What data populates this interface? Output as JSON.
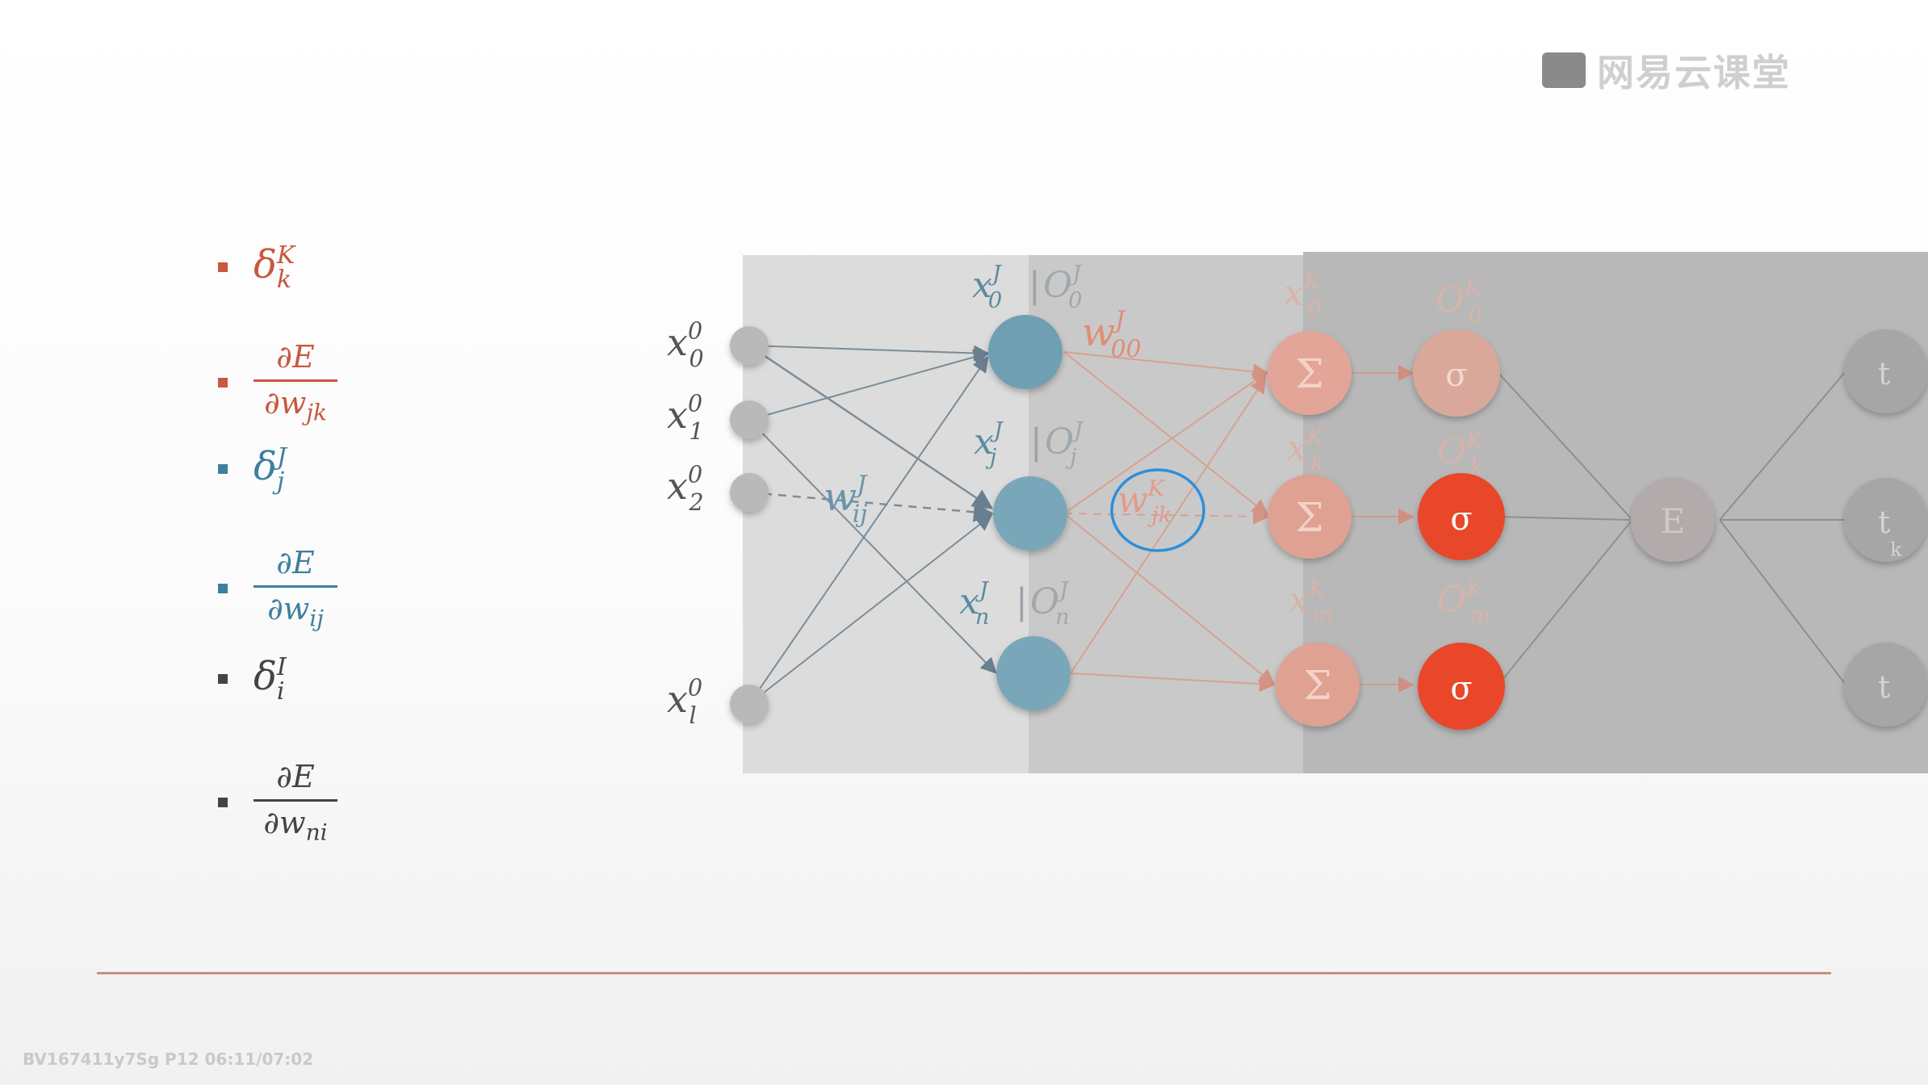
{
  "watermark": {
    "text": "网易云课堂"
  },
  "bullets": [
    {
      "kind": "symbol",
      "base": "δ",
      "sup": "K",
      "sub": "k",
      "color": "#c8583f"
    },
    {
      "kind": "fraction",
      "numerator": "∂E",
      "denominator": "∂w",
      "sub": "jk",
      "color": "#c8583f"
    },
    {
      "kind": "symbol",
      "base": "δ",
      "sup": "J",
      "sub": "j",
      "color": "#3f7f9f"
    },
    {
      "kind": "fraction",
      "numerator": "∂E",
      "denominator": "∂w",
      "sub": "ij",
      "color": "#3f7f9f"
    },
    {
      "kind": "symbol",
      "base": "δ",
      "sup": "I",
      "sub": "i",
      "color": "#444444"
    },
    {
      "kind": "fraction",
      "numerator": "∂E",
      "denominator": "∂w",
      "sub": "ni",
      "color": "#444444"
    }
  ],
  "network": {
    "input_labels": [
      {
        "base": "x",
        "sup": "0",
        "sub": "0"
      },
      {
        "base": "x",
        "sup": "0",
        "sub": "1"
      },
      {
        "base": "x",
        "sup": "0",
        "sub": "2"
      },
      {
        "base": "x",
        "sup": "0",
        "sub": "l"
      }
    ],
    "hidden_labels": [
      {
        "x": "x",
        "x_sup": "J",
        "x_sub": "0",
        "o": "O",
        "o_sup": "J",
        "o_sub": "0"
      },
      {
        "x": "x",
        "x_sup": "J",
        "x_sub": "j",
        "o": "O",
        "o_sup": "J",
        "o_sub": "j"
      },
      {
        "x": "x",
        "x_sup": "J",
        "x_sub": "n",
        "o": "O",
        "o_sup": "J",
        "o_sub": "n"
      }
    ],
    "output_x_labels": [
      {
        "base": "x",
        "sup": "K",
        "sub": "0"
      },
      {
        "base": "x",
        "sup": "K",
        "sub": "k"
      },
      {
        "base": "x",
        "sup": "K",
        "sub": "m"
      }
    ],
    "output_o_labels": [
      {
        "base": "O",
        "sup": "K",
        "sub": "0"
      },
      {
        "base": "O",
        "sup": "K",
        "sub": "k"
      },
      {
        "base": "O",
        "sup": "K",
        "sub": "m"
      }
    ],
    "weight_ij": {
      "base": "w",
      "sup": "J",
      "sub": "ij"
    },
    "weight_00": {
      "base": "w",
      "sup": "J",
      "sub": "00"
    },
    "weight_jk": {
      "base": "w",
      "sup": "K",
      "sub": "jk"
    },
    "sum_symbol": "Σ",
    "sigma_symbol": "σ",
    "error_label": "E",
    "target_labels": [
      {
        "base": "t",
        "sub": ""
      },
      {
        "base": "t",
        "sub": "k"
      },
      {
        "base": "t",
        "sub": ""
      }
    ]
  },
  "footer": {
    "text": "BV167411y7Sg P12 06:11/07:02"
  }
}
